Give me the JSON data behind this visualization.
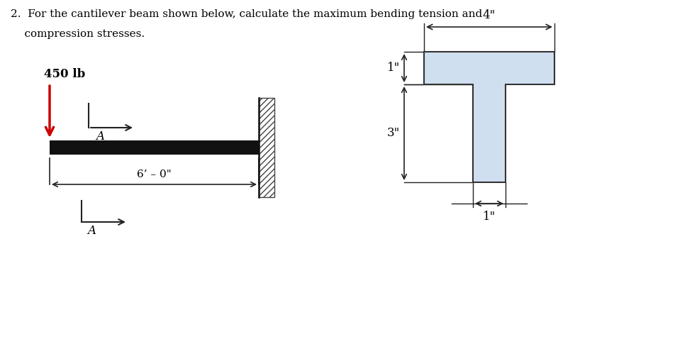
{
  "bg_color": "#ffffff",
  "beam_color": "#111111",
  "load_arrow_color": "#cc0000",
  "cross_section_fill": "#d0dff0",
  "cross_section_edge": "#333333",
  "hatch_color": "#444444",
  "dim_color": "#222222",
  "title_line1": "2.  For the cantilever beam shown below, calculate the maximum bending tension and",
  "title_line2": "    compression stresses.",
  "label_450lb": "450 lb",
  "label_A": "A",
  "label_6ft": "6’ – 0\"",
  "label_4in": "4\"",
  "label_1in_flange": "1\"",
  "label_3in_web": "3\"",
  "label_1in_web_width": "1\"",
  "fig_w": 9.52,
  "fig_h": 4.78
}
